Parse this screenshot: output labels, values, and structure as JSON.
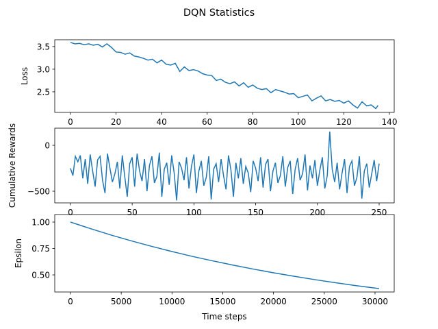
{
  "title": "DQN Statistics",
  "chart_data": [
    {
      "type": "line",
      "ylabel": "Loss",
      "color": "#1f77b4",
      "x": [
        0,
        2,
        4,
        6,
        8,
        10,
        12,
        14,
        16,
        18,
        20,
        22,
        24,
        26,
        28,
        30,
        32,
        34,
        36,
        38,
        40,
        42,
        44,
        46,
        48,
        50,
        52,
        54,
        56,
        58,
        60,
        62,
        64,
        66,
        68,
        70,
        72,
        74,
        76,
        78,
        80,
        82,
        84,
        86,
        88,
        90,
        92,
        94,
        96,
        98,
        100,
        102,
        104,
        106,
        108,
        110,
        112,
        114,
        116,
        118,
        120,
        122,
        124,
        126,
        128,
        130,
        132,
        134,
        135
      ],
      "values": [
        3.59,
        3.56,
        3.57,
        3.54,
        3.56,
        3.53,
        3.55,
        3.49,
        3.56,
        3.48,
        3.38,
        3.37,
        3.33,
        3.36,
        3.29,
        3.27,
        3.24,
        3.2,
        3.22,
        3.14,
        3.2,
        3.11,
        3.09,
        3.13,
        2.95,
        3.05,
        2.97,
        2.99,
        2.96,
        2.9,
        2.87,
        2.86,
        2.75,
        2.78,
        2.71,
        2.68,
        2.72,
        2.63,
        2.7,
        2.6,
        2.65,
        2.58,
        2.55,
        2.57,
        2.48,
        2.55,
        2.52,
        2.49,
        2.45,
        2.46,
        2.37,
        2.4,
        2.43,
        2.3,
        2.36,
        2.41,
        2.3,
        2.33,
        2.29,
        2.31,
        2.25,
        2.3,
        2.21,
        2.14,
        2.28,
        2.19,
        2.21,
        2.13,
        2.2
      ],
      "xlim": [
        -6.9,
        142.1
      ],
      "ylim": [
        2.045,
        3.65
      ],
      "xticks": [
        0,
        20,
        40,
        60,
        80,
        100,
        120,
        140
      ],
      "yticks": [
        2.5,
        {
          "value": 3,
          "label": "3.0"
        },
        3.5
      ]
    },
    {
      "type": "line",
      "ylabel": "Cumulative Rewards",
      "color": "#1f77b4",
      "x": [
        0,
        2,
        4,
        6,
        8,
        10,
        12,
        14,
        16,
        18,
        20,
        22,
        24,
        26,
        28,
        30,
        32,
        34,
        36,
        38,
        40,
        42,
        44,
        46,
        48,
        50,
        52,
        54,
        56,
        58,
        60,
        62,
        64,
        66,
        68,
        70,
        72,
        74,
        76,
        78,
        80,
        82,
        84,
        86,
        88,
        90,
        92,
        94,
        96,
        98,
        100,
        102,
        104,
        106,
        108,
        110,
        112,
        114,
        116,
        118,
        120,
        122,
        124,
        126,
        128,
        130,
        132,
        134,
        136,
        138,
        140,
        142,
        144,
        146,
        148,
        150,
        152,
        154,
        156,
        158,
        160,
        162,
        164,
        166,
        168,
        170,
        172,
        174,
        176,
        178,
        180,
        182,
        184,
        186,
        188,
        190,
        192,
        194,
        196,
        198,
        200,
        202,
        204,
        206,
        208,
        210,
        212,
        214,
        216,
        218,
        220,
        222,
        224,
        226,
        228,
        230,
        232,
        234,
        236,
        238,
        240,
        242,
        244,
        246,
        248,
        250
      ],
      "values": [
        -250,
        -330,
        -120,
        -180,
        -110,
        -360,
        -150,
        -420,
        -100,
        -280,
        -450,
        -160,
        -120,
        -380,
        -520,
        -90,
        -250,
        -400,
        -310,
        -180,
        -470,
        -110,
        -340,
        -560,
        -200,
        -130,
        -450,
        -90,
        -280,
        -390,
        -150,
        -500,
        -220,
        -120,
        -410,
        -340,
        -80,
        -560,
        -260,
        -190,
        -430,
        -110,
        -300,
        -600,
        -180,
        -250,
        -380,
        -130,
        -470,
        -230,
        -100,
        -520,
        -280,
        -170,
        -440,
        -350,
        -120,
        -590,
        -260,
        -200,
        -400,
        -150,
        -330,
        -480,
        -110,
        -270,
        -560,
        -190,
        -360,
        -140,
        -420,
        -230,
        -300,
        -510,
        -170,
        -250,
        -390,
        -130,
        -460,
        -210,
        -150,
        -500,
        -280,
        -190,
        -410,
        -330,
        -120,
        -450,
        -240,
        -170,
        -530,
        -260,
        -140,
        -380,
        -310,
        -100,
        -490,
        -220,
        -360,
        -160,
        -440,
        -270,
        -130,
        -470,
        -330,
        150,
        -260,
        -400,
        -190,
        -480,
        -300,
        -150,
        -520,
        -230,
        -170,
        -440,
        -350,
        -120,
        -580,
        -280,
        -200,
        -460,
        -310,
        -160,
        -390,
        -200
      ],
      "xlim": [
        -12.7,
        262.2
      ],
      "ylim": [
        -627,
        186.6
      ],
      "xticks": [
        0,
        50,
        100,
        150,
        200,
        250
      ],
      "yticks": [
        {
          "value": -500,
          "label": "−500"
        },
        0
      ]
    },
    {
      "type": "line",
      "ylabel": "Epsilon",
      "xlabel": "Time steps",
      "color": "#1f77b4",
      "x": [
        0,
        2000,
        4000,
        6000,
        8000,
        10000,
        12000,
        14000,
        16000,
        18000,
        20000,
        22000,
        24000,
        26000,
        28000,
        30000,
        30400
      ],
      "values": [
        1.0,
        0.937,
        0.877,
        0.822,
        0.77,
        0.721,
        0.675,
        0.633,
        0.593,
        0.555,
        0.52,
        0.487,
        0.456,
        0.427,
        0.4,
        0.375,
        0.37
      ],
      "xlim": [
        -1550,
        31890
      ],
      "ylim": [
        0.338,
        1.0714
      ],
      "xticks": [
        0,
        5000,
        10000,
        15000,
        20000,
        25000,
        30000
      ],
      "yticks": [
        {
          "value": 0.5,
          "label": "0.50"
        },
        {
          "value": 0.75,
          "label": "0.75"
        },
        {
          "value": 1,
          "label": "1.00"
        }
      ]
    }
  ]
}
